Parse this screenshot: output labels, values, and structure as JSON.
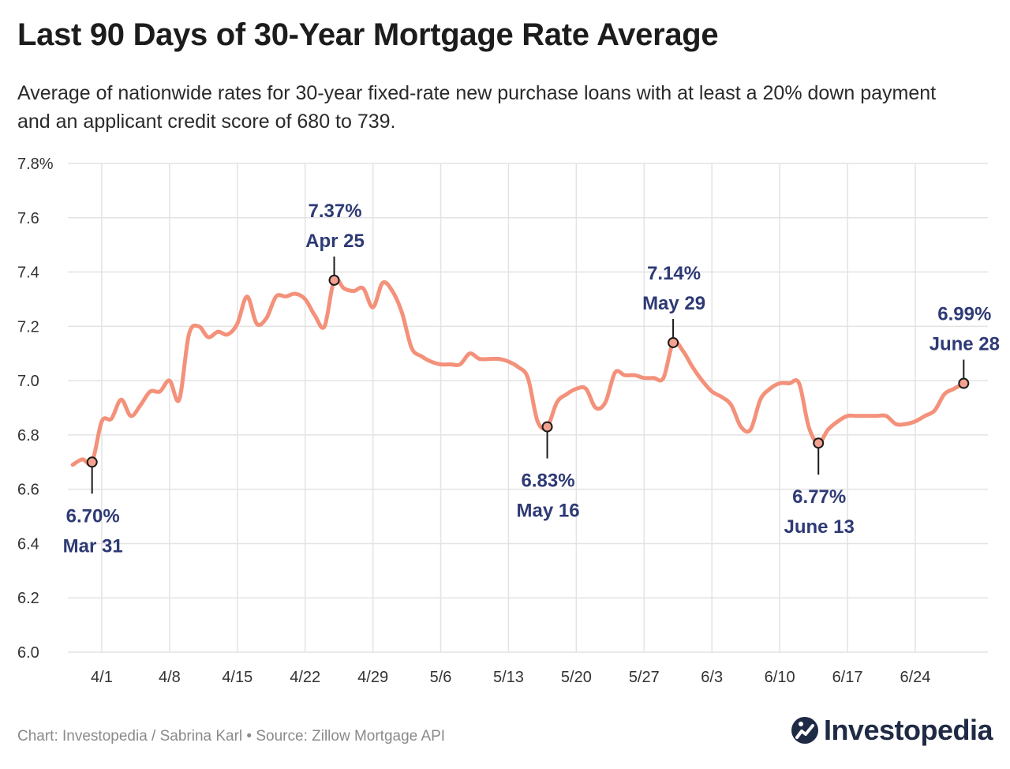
{
  "page": {
    "title": "Last 90 Days of 30-Year Mortgage Rate Average",
    "subtitle": "Average of nationwide rates for 30-year fixed-rate new purchase loans with at least a 20% down payment and an applicant credit score of 680 to 739.",
    "credit": "Chart: Investopedia / Sabrina Karl • Source: Zillow Mortgage API",
    "brand": "Investopedia"
  },
  "colors": {
    "line": "#f4917a",
    "grid": "#e3e3e3",
    "annotation": "#2e3a75",
    "marker_fill": "#f4a28f",
    "marker_stroke": "#1a1a1a"
  },
  "chart_data": {
    "type": "line",
    "title": "Last 90 Days of 30-Year Mortgage Rate Average",
    "xlabel": "",
    "ylabel": "",
    "x_range_day_index": [
      -3.5,
      91.5
    ],
    "ylim": [
      6.0,
      7.8
    ],
    "y_ticks": [
      6.0,
      6.2,
      6.4,
      6.6,
      6.8,
      7.0,
      7.2,
      7.4,
      7.6,
      7.8
    ],
    "y_tick_labels": [
      "6.0",
      "6.2",
      "6.4",
      "6.6",
      "6.8",
      "7.0",
      "7.2",
      "7.4",
      "7.6",
      "7.8%"
    ],
    "x_ticks": [
      {
        "day": 0,
        "label": "4/1"
      },
      {
        "day": 7,
        "label": "4/8"
      },
      {
        "day": 14,
        "label": "4/15"
      },
      {
        "day": 21,
        "label": "4/22"
      },
      {
        "day": 28,
        "label": "4/29"
      },
      {
        "day": 35,
        "label": "5/6"
      },
      {
        "day": 42,
        "label": "5/13"
      },
      {
        "day": 49,
        "label": "5/20"
      },
      {
        "day": 56,
        "label": "5/27"
      },
      {
        "day": 63,
        "label": "6/3"
      },
      {
        "day": 70,
        "label": "6/10"
      },
      {
        "day": 77,
        "label": "6/17"
      },
      {
        "day": 84,
        "label": "6/24"
      }
    ],
    "grid": true,
    "series": [
      {
        "name": "30-Year Mortgage Rate Average",
        "points": [
          [
            -3,
            6.69
          ],
          [
            -2,
            6.71
          ],
          [
            -1,
            6.7
          ],
          [
            0,
            6.85
          ],
          [
            1,
            6.86
          ],
          [
            2,
            6.93
          ],
          [
            3,
            6.87
          ],
          [
            4,
            6.91
          ],
          [
            5,
            6.96
          ],
          [
            6,
            6.96
          ],
          [
            7,
            7.0
          ],
          [
            8,
            6.93
          ],
          [
            9,
            7.17
          ],
          [
            10,
            7.2
          ],
          [
            11,
            7.16
          ],
          [
            12,
            7.18
          ],
          [
            13,
            7.17
          ],
          [
            14,
            7.21
          ],
          [
            15,
            7.31
          ],
          [
            16,
            7.21
          ],
          [
            17,
            7.23
          ],
          [
            18,
            7.31
          ],
          [
            19,
            7.31
          ],
          [
            20,
            7.32
          ],
          [
            21,
            7.3
          ],
          [
            22,
            7.24
          ],
          [
            23,
            7.2
          ],
          [
            24,
            7.37
          ],
          [
            25,
            7.34
          ],
          [
            26,
            7.33
          ],
          [
            27,
            7.34
          ],
          [
            28,
            7.27
          ],
          [
            29,
            7.36
          ],
          [
            30,
            7.33
          ],
          [
            31,
            7.25
          ],
          [
            32,
            7.12
          ],
          [
            33,
            7.09
          ],
          [
            34,
            7.07
          ],
          [
            35,
            7.06
          ],
          [
            36,
            7.06
          ],
          [
            37,
            7.06
          ],
          [
            38,
            7.1
          ],
          [
            39,
            7.08
          ],
          [
            40,
            7.08
          ],
          [
            41,
            7.08
          ],
          [
            42,
            7.07
          ],
          [
            43,
            7.05
          ],
          [
            44,
            7.01
          ],
          [
            45,
            6.85
          ],
          [
            46,
            6.83
          ],
          [
            47,
            6.92
          ],
          [
            48,
            6.95
          ],
          [
            49,
            6.97
          ],
          [
            50,
            6.97
          ],
          [
            51,
            6.9
          ],
          [
            52,
            6.92
          ],
          [
            53,
            7.03
          ],
          [
            54,
            7.02
          ],
          [
            55,
            7.02
          ],
          [
            56,
            7.01
          ],
          [
            57,
            7.01
          ],
          [
            58,
            7.01
          ],
          [
            59,
            7.14
          ],
          [
            60,
            7.11
          ],
          [
            61,
            7.05
          ],
          [
            62,
            7.0
          ],
          [
            63,
            6.96
          ],
          [
            64,
            6.94
          ],
          [
            65,
            6.91
          ],
          [
            66,
            6.83
          ],
          [
            67,
            6.82
          ],
          [
            68,
            6.93
          ],
          [
            69,
            6.97
          ],
          [
            70,
            6.99
          ],
          [
            71,
            6.99
          ],
          [
            72,
            6.99
          ],
          [
            73,
            6.83
          ],
          [
            74,
            6.77
          ],
          [
            75,
            6.82
          ],
          [
            76,
            6.85
          ],
          [
            77,
            6.87
          ],
          [
            78,
            6.87
          ],
          [
            79,
            6.87
          ],
          [
            80,
            6.87
          ],
          [
            81,
            6.87
          ],
          [
            82,
            6.84
          ],
          [
            83,
            6.84
          ],
          [
            84,
            6.85
          ],
          [
            85,
            6.87
          ],
          [
            86,
            6.89
          ],
          [
            87,
            6.95
          ],
          [
            88,
            6.97
          ],
          [
            89,
            6.99
          ]
        ]
      }
    ],
    "annotations": [
      {
        "day": -1,
        "value": 6.7,
        "label_value": "6.70%",
        "label_date": "Mar 31",
        "position": "below"
      },
      {
        "day": 24,
        "value": 7.37,
        "label_value": "7.37%",
        "label_date": "Apr 25",
        "position": "above"
      },
      {
        "day": 46,
        "value": 6.83,
        "label_value": "6.83%",
        "label_date": "May 16",
        "position": "below"
      },
      {
        "day": 59,
        "value": 7.14,
        "label_value": "7.14%",
        "label_date": "May 29",
        "position": "above"
      },
      {
        "day": 74,
        "value": 6.77,
        "label_value": "6.77%",
        "label_date": "June 13",
        "position": "below"
      },
      {
        "day": 89,
        "value": 6.99,
        "label_value": "6.99%",
        "label_date": "June 28",
        "position": "above"
      }
    ]
  }
}
